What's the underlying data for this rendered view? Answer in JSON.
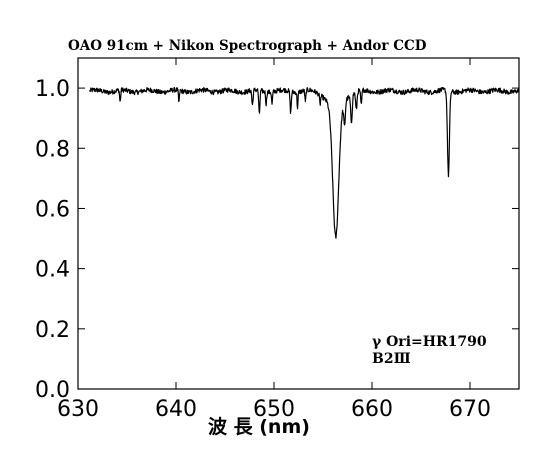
{
  "chart_data": {
    "type": "line",
    "title": "OAO 91cm + Nikon Spectrograph + Andor CCD",
    "xlabel": "波 長 (nm)",
    "ylabel": "",
    "xlim": [
      630,
      675
    ],
    "ylim": [
      0.0,
      1.1
    ],
    "x_ticks": [
      630,
      640,
      650,
      660,
      670
    ],
    "x_tick_labels": [
      "630",
      "640",
      "650",
      "660",
      "670"
    ],
    "y_ticks": [
      0.0,
      0.2,
      0.4,
      0.6,
      0.8,
      1.0
    ],
    "y_tick_labels": [
      "0.0",
      "0.2",
      "0.4",
      "0.6",
      "0.8",
      "1.0"
    ],
    "grid": false,
    "annotations": [
      "γ Ori=HR1790",
      "B2Ⅲ"
    ],
    "series": [
      {
        "continuum": 0.99,
        "absorption_lines": [
          {
            "center": 634.3,
            "depth": 0.04,
            "width": 0.05
          },
          {
            "center": 640.3,
            "depth": 0.04,
            "width": 0.05
          },
          {
            "center": 647.8,
            "depth": 0.05,
            "width": 0.06
          },
          {
            "center": 648.5,
            "depth": 0.08,
            "width": 0.06
          },
          {
            "center": 649.2,
            "depth": 0.04,
            "width": 0.05
          },
          {
            "center": 649.8,
            "depth": 0.04,
            "width": 0.05
          },
          {
            "center": 651.7,
            "depth": 0.07,
            "width": 0.06
          },
          {
            "center": 652.4,
            "depth": 0.05,
            "width": 0.05
          },
          {
            "center": 653.2,
            "depth": 0.04,
            "width": 0.05
          },
          {
            "center": 654.7,
            "depth": 0.03,
            "width": 0.05
          },
          {
            "center": 656.3,
            "depth": 0.44,
            "width": 0.3
          },
          {
            "center": 657.2,
            "depth": 0.08,
            "width": 0.08
          },
          {
            "center": 657.9,
            "depth": 0.09,
            "width": 0.08
          },
          {
            "center": 658.4,
            "depth": 0.06,
            "width": 0.07
          },
          {
            "center": 658.9,
            "depth": 0.05,
            "width": 0.06
          },
          {
            "center": 667.8,
            "depth": 0.28,
            "width": 0.1
          }
        ]
      }
    ]
  }
}
